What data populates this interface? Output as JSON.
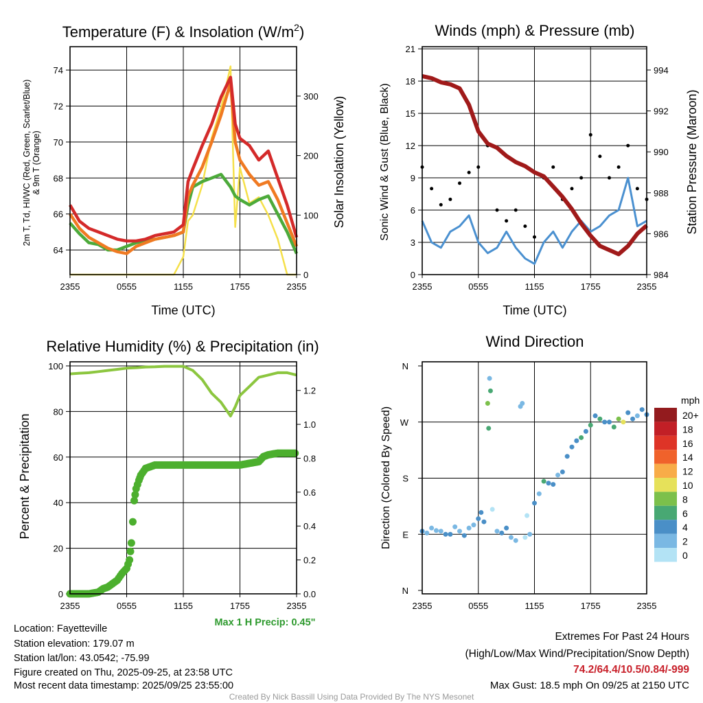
{
  "chart_data": [
    {
      "type": "line",
      "title_main": "Temperature (F) & Insolation (W/m",
      "title_sup": "2",
      "title_end": ")",
      "xlabel": "Time (UTC)",
      "ylabel_line1": "2m T, Td, HI/WC (Red, Green, Scarlet/Blue)",
      "ylabel_line2": "& 9m T (Orange)",
      "y2label": "Solar Insolation (Yellow)",
      "x_ticks": [
        "2355",
        "0555",
        "1155",
        "1755",
        "2355"
      ],
      "y_ticks": [
        64,
        66,
        68,
        70,
        72,
        74
      ],
      "y2_ticks": [
        0,
        100,
        200,
        300
      ],
      "ylim": [
        62.63,
        75.3
      ],
      "y2lim": [
        0,
        383
      ],
      "x_hours": [
        0,
        1,
        2,
        3,
        4,
        5,
        6,
        7,
        8,
        9,
        10,
        11,
        12,
        12.5,
        13,
        14,
        15,
        16,
        17,
        17.5,
        18,
        19,
        20,
        21,
        22,
        23,
        24
      ],
      "series": [
        {
          "name": "2m T",
          "color": "#d42a2a",
          "axis": "left",
          "values": [
            66.5,
            65.6,
            65.2,
            65.0,
            64.8,
            64.6,
            64.5,
            64.5,
            64.6,
            64.8,
            64.9,
            65.0,
            65.4,
            67.8,
            68.5,
            69.8,
            71.0,
            72.5,
            73.6,
            71.0,
            70.2,
            69.8,
            69.0,
            69.5,
            68.0,
            66.5,
            64.7
          ]
        },
        {
          "name": "9m T",
          "color": "#f07a22",
          "axis": "left",
          "values": [
            66.0,
            65.2,
            64.7,
            64.4,
            64.1,
            63.9,
            63.8,
            64.2,
            64.4,
            64.6,
            64.7,
            64.8,
            65.0,
            67.0,
            67.6,
            68.6,
            70.0,
            71.5,
            73.3,
            70.0,
            69.0,
            68.2,
            67.6,
            67.8,
            66.8,
            65.5,
            64.2
          ]
        },
        {
          "name": "Td",
          "color": "#4caa3a",
          "axis": "left",
          "values": [
            65.5,
            64.9,
            64.4,
            64.3,
            64.0,
            64.0,
            64.2,
            64.4,
            64.5,
            64.6,
            64.7,
            64.8,
            65.0,
            66.5,
            67.5,
            67.8,
            68.0,
            68.2,
            67.5,
            67.0,
            66.8,
            66.5,
            66.8,
            67.0,
            66.0,
            65.0,
            63.8
          ]
        },
        {
          "name": "Solar Insolation",
          "color": "#f5e04a",
          "axis": "right",
          "values": [
            0,
            0,
            0,
            0,
            0,
            0,
            0,
            0,
            0,
            0,
            0,
            0,
            30,
            90,
            100,
            150,
            230,
            280,
            350,
            80,
            180,
            120,
            130,
            100,
            60,
            0,
            0
          ]
        }
      ]
    },
    {
      "type": "line",
      "title": "Winds (mph) & Pressure (mb)",
      "xlabel": "Time (UTC)",
      "ylabel": "Sonic Wind & Gust (Blue, Black)",
      "y2label": "Station Pressure (Maroon)",
      "x_ticks": [
        "2355",
        "0555",
        "1155",
        "1755",
        "2355"
      ],
      "y_ticks": [
        0,
        3,
        6,
        9,
        12,
        15,
        18,
        21
      ],
      "y2_ticks": [
        984,
        986,
        988,
        990,
        992,
        994
      ],
      "ylim": [
        0,
        21.2
      ],
      "y2lim": [
        984,
        995.14
      ],
      "x_hours": [
        0,
        1,
        2,
        3,
        4,
        5,
        6,
        7,
        8,
        9,
        10,
        11,
        12,
        13,
        14,
        15,
        16,
        17,
        18,
        19,
        20,
        21,
        22,
        23,
        24
      ],
      "series": [
        {
          "name": "Sonic Wind",
          "color": "#4a90d0",
          "type": "line",
          "values": [
            5,
            3,
            2.5,
            4,
            4.5,
            5.5,
            3,
            2,
            2.5,
            4,
            2.5,
            1.5,
            1,
            3,
            4,
            2.5,
            4,
            5,
            4,
            4.5,
            5.5,
            6,
            9,
            4.5,
            5
          ]
        },
        {
          "name": "Gust",
          "color": "#000000",
          "type": "scatter",
          "values": [
            10,
            8,
            6.5,
            7,
            8.5,
            9.5,
            10,
            12,
            6,
            5,
            6,
            4.5,
            3.5,
            9,
            10,
            7,
            8,
            9,
            13,
            11,
            9,
            10,
            12,
            8,
            7
          ]
        },
        {
          "name": "Station Pressure",
          "color": "#a01a1a",
          "type": "line",
          "axis": "right",
          "values": [
            993.7,
            993.6,
            993.4,
            993.3,
            993.1,
            992.3,
            991.0,
            990.4,
            990.2,
            989.8,
            989.5,
            989.3,
            989.0,
            988.8,
            988.3,
            987.8,
            987.2,
            986.5,
            985.9,
            985.4,
            985.2,
            985.0,
            985.4,
            986.0,
            986.4
          ]
        }
      ]
    },
    {
      "type": "line",
      "title": "Relative Humidity (%) & Precipitation (in)",
      "ylabel": "Percent & Precipitation",
      "x_ticks": [
        "2355",
        "0555",
        "1155",
        "1755",
        "2355"
      ],
      "y_ticks": [
        0,
        20,
        40,
        60,
        80,
        100
      ],
      "y2_ticks": [
        "0.0",
        "0.2",
        "0.4",
        "0.6",
        "0.8",
        "1.0",
        "1.2"
      ],
      "ylim": [
        0,
        101.8
      ],
      "y2lim": [
        0,
        1.369
      ],
      "annotation": "Max 1 H Precip: 0.45\"",
      "series": [
        {
          "name": "Relative Humidity",
          "color": "#8cc63f",
          "x_hours": [
            0,
            1,
            2,
            3,
            4,
            5,
            6,
            7,
            8,
            9,
            10,
            11,
            12,
            13,
            14,
            15,
            16,
            17,
            17.5,
            18,
            19,
            20,
            21,
            22,
            23,
            24
          ],
          "values": [
            96.5,
            96.8,
            97,
            97.5,
            98,
            98.5,
            99,
            99.2,
            99.5,
            99.6,
            99.8,
            99.8,
            99.8,
            98,
            94,
            88,
            84,
            78,
            82,
            87,
            91,
            95,
            96,
            97,
            97,
            96
          ]
        },
        {
          "name": "Precipitation",
          "color": "#4caf2e",
          "axis": "right",
          "x_hours": [
            0,
            1,
            2,
            3,
            3.5,
            4,
            4.5,
            5,
            5.5,
            6,
            6.3,
            6.5,
            6.8,
            7,
            7.3,
            7.5,
            8,
            9,
            10,
            12,
            14,
            16,
            18,
            19,
            20,
            20.5,
            21,
            22,
            23,
            24
          ],
          "values": [
            0,
            0,
            0,
            0.01,
            0.03,
            0.04,
            0.06,
            0.08,
            0.12,
            0.15,
            0.2,
            0.3,
            0.55,
            0.62,
            0.67,
            0.7,
            0.74,
            0.76,
            0.76,
            0.76,
            0.76,
            0.76,
            0.76,
            0.77,
            0.78,
            0.81,
            0.82,
            0.83,
            0.83,
            0.83
          ]
        }
      ]
    },
    {
      "type": "scatter",
      "title": "Wind Direction",
      "ylabel": "Direction (Colored By Speed)",
      "x_ticks": [
        "2355",
        "0555",
        "1155",
        "1755",
        "2355"
      ],
      "y_ticks": [
        "N",
        "E",
        "S",
        "W",
        "N"
      ],
      "ylim": [
        0,
        360
      ],
      "legend_title": "mph",
      "legend": [
        {
          "label": "20+",
          "color": "#931b1e"
        },
        {
          "label": "18",
          "color": "#c21f26"
        },
        {
          "label": "16",
          "color": "#de3427"
        },
        {
          "label": "14",
          "color": "#f0622b"
        },
        {
          "label": "12",
          "color": "#f8ac48"
        },
        {
          "label": "10",
          "color": "#e6e15a"
        },
        {
          "label": "8",
          "color": "#7cc04b"
        },
        {
          "label": "6",
          "color": "#48a873"
        },
        {
          "label": "4",
          "color": "#4a8fc7"
        },
        {
          "label": "2",
          "color": "#7ab8e3"
        },
        {
          "label": "0",
          "color": "#b3e3f5"
        }
      ],
      "points": [
        [
          0,
          95,
          4
        ],
        [
          0.5,
          92,
          3
        ],
        [
          1,
          100,
          3
        ],
        [
          1.5,
          96,
          2
        ],
        [
          2,
          95,
          2
        ],
        [
          2.5,
          90,
          4
        ],
        [
          3,
          90,
          4
        ],
        [
          3.5,
          102,
          3
        ],
        [
          4,
          95,
          3
        ],
        [
          4.5,
          88,
          4
        ],
        [
          5,
          100,
          2
        ],
        [
          5.5,
          105,
          3
        ],
        [
          6,
          115,
          5
        ],
        [
          6.3,
          125,
          4
        ],
        [
          6.6,
          110,
          4
        ],
        [
          7,
          300,
          8
        ],
        [
          7.1,
          260,
          7
        ],
        [
          7.2,
          340,
          2
        ],
        [
          7.3,
          320,
          6
        ],
        [
          7.5,
          130,
          1
        ],
        [
          8,
          95,
          3
        ],
        [
          8.5,
          92,
          4
        ],
        [
          9,
          100,
          4
        ],
        [
          9.5,
          85,
          2
        ],
        [
          10,
          80,
          2
        ],
        [
          10.5,
          295,
          2
        ],
        [
          10.7,
          300,
          2
        ],
        [
          11,
          85,
          1
        ],
        [
          11.2,
          120,
          1
        ],
        [
          11.5,
          90,
          3
        ],
        [
          12,
          140,
          4
        ],
        [
          12.5,
          155,
          3
        ],
        [
          13,
          175,
          6
        ],
        [
          13.5,
          172,
          5
        ],
        [
          14,
          170,
          4
        ],
        [
          14.5,
          185,
          3
        ],
        [
          15,
          190,
          5
        ],
        [
          15.5,
          215,
          4
        ],
        [
          16,
          230,
          4
        ],
        [
          16.5,
          240,
          5
        ],
        [
          17,
          245,
          6
        ],
        [
          17.5,
          255,
          4
        ],
        [
          18,
          265,
          6
        ],
        [
          18.5,
          280,
          5
        ],
        [
          19,
          275,
          6
        ],
        [
          19.5,
          270,
          4
        ],
        [
          20,
          270,
          5
        ],
        [
          20.5,
          262,
          7
        ],
        [
          21,
          275,
          8
        ],
        [
          21.5,
          270,
          10
        ],
        [
          22,
          285,
          4
        ],
        [
          22.5,
          275,
          4
        ],
        [
          23,
          280,
          3
        ],
        [
          23.5,
          290,
          4
        ],
        [
          24,
          282,
          4
        ]
      ]
    }
  ],
  "info": {
    "location": "Location: Fayetteville",
    "elevation": "Station elevation: 179.07 m",
    "latlon": "Station lat/lon: 43.0542; -75.99",
    "created": "Figure created on Thu, 2025-09-25, at 23:58 UTC",
    "recent": "Most recent data timestamp: 2025/09/25 23:55:00"
  },
  "extremes": {
    "title": "Extremes For Past 24 Hours",
    "subtitle": "(High/Low/Max Wind/Precipitation/Snow Depth)",
    "values": "74.2/64.4/10.5/0.84/-999",
    "gust": "Max Gust: 18.5 mph On 09/25 at 2150 UTC"
  },
  "credit": "Created By Nick Bassill Using Data Provided By The NYS Mesonet"
}
